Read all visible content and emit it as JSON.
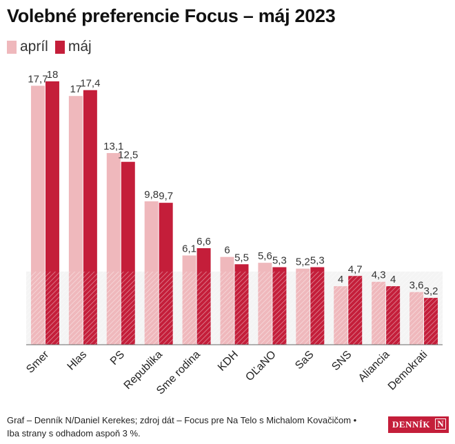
{
  "title": "Volebné preferencie Focus – máj 2023",
  "colors": {
    "april": "#efb8bc",
    "may": "#c41e3a",
    "threshold": "#f4f4f4"
  },
  "chart_data": {
    "type": "bar",
    "title": "Volebné preferencie Focus – máj 2023",
    "categories": [
      "Smer",
      "Hlas",
      "PS",
      "Republika",
      "Sme rodina",
      "KDH",
      "OĽaNO",
      "SaS",
      "SNS",
      "Aliancia",
      "Demokrati"
    ],
    "series": [
      {
        "name": "apríl",
        "values": [
          17.7,
          17,
          13.1,
          9.8,
          6.1,
          6,
          5.6,
          5.2,
          4,
          4.3,
          3.6
        ],
        "labels": [
          "17,7",
          "17",
          "13,1",
          "9,8",
          "6,1",
          "6",
          "5,6",
          "5,2",
          "4",
          "4,3",
          "3,6"
        ]
      },
      {
        "name": "máj",
        "values": [
          18,
          17.4,
          12.5,
          9.7,
          6.6,
          5.5,
          5.3,
          5.3,
          4.7,
          4,
          3.2
        ],
        "labels": [
          "18",
          "17,4",
          "12,5",
          "9,7",
          "6,6",
          "5,5",
          "5,3",
          "5,3",
          "4,7",
          "4",
          "3,2"
        ]
      }
    ],
    "threshold": 5,
    "ylim": [
      0,
      18
    ],
    "xlabel": "",
    "ylabel": "",
    "grid": false,
    "legend": "top-left"
  },
  "footer": {
    "line1": "Graf – Denník N/Daniel Kerekes; zdroj dát – Focus pre Na Telo s Michalom Kovačičom •",
    "line2": "Iba strany s odhadom aspoň 3 %."
  },
  "logo": {
    "text": "DENNÍK",
    "letter": "N"
  }
}
